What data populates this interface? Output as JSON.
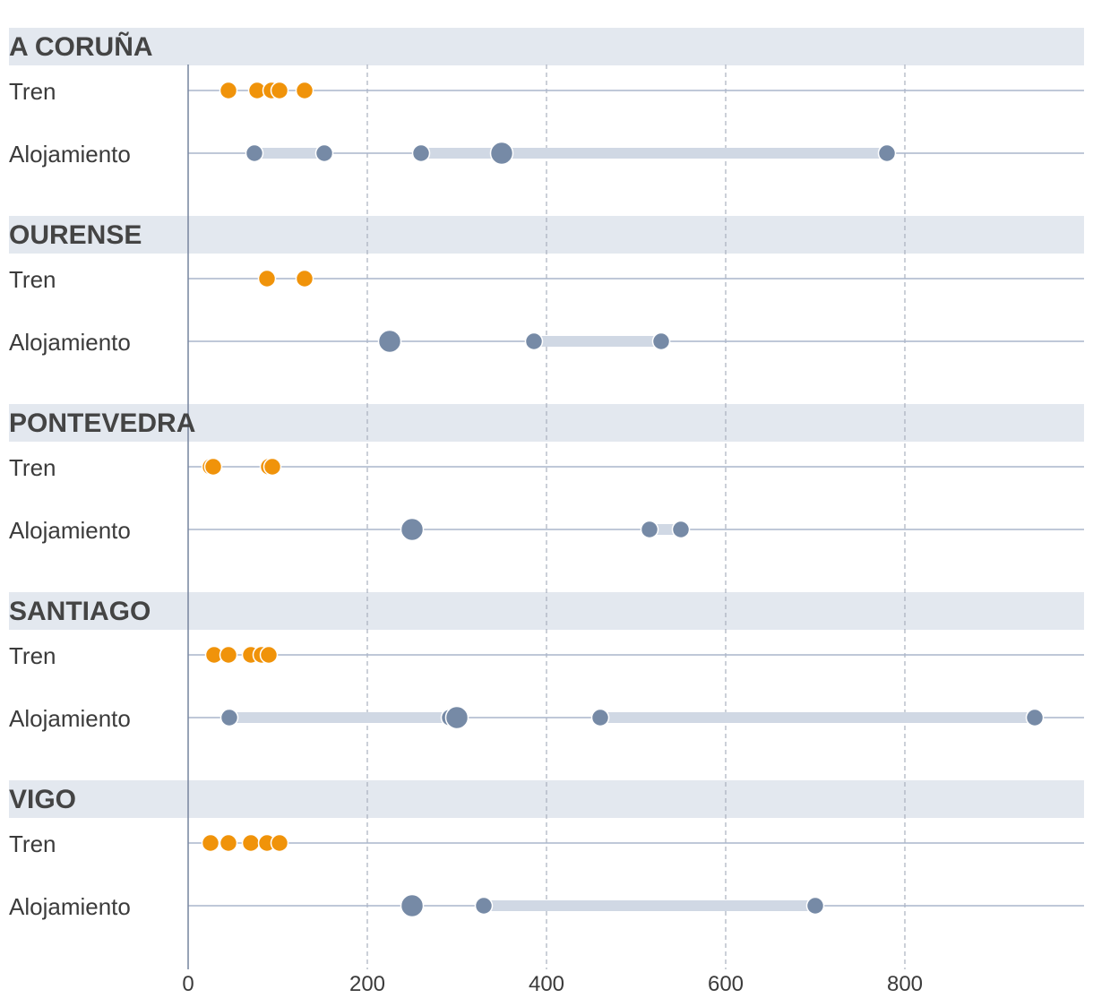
{
  "colors": {
    "band": "#e3e8ef",
    "row_line": "#aab6cc",
    "grid": "#a9b0bd",
    "axis": "#7d8aa3",
    "tren": "#f0930a",
    "alojamiento": "#768aa6",
    "range_bar": "#d0d8e4",
    "dot_stroke": "#ffffff"
  },
  "chart_data": {
    "type": "dot-range",
    "xlim": [
      0,
      1000
    ],
    "xticks": [
      "0",
      "200",
      "400",
      "600",
      "800"
    ],
    "grid": "vertical-dashed",
    "groups": [
      {
        "name": "A CORUÑA",
        "rows": [
          {
            "label": "Tren",
            "kind": "tren",
            "points": [
              45,
              77,
              93,
              102,
              130
            ]
          },
          {
            "label": "Alojamiento",
            "kind": "alojamiento",
            "ranges": [
              [
                74,
                152
              ],
              [
                260,
                780
              ]
            ],
            "points": [
              74,
              152,
              260,
              780
            ],
            "big_points": [
              350
            ]
          }
        ]
      },
      {
        "name": "OURENSE",
        "rows": [
          {
            "label": "Tren",
            "kind": "tren",
            "points": [
              88,
              130
            ]
          },
          {
            "label": "Alojamiento",
            "kind": "alojamiento",
            "ranges": [
              [
                386,
                528
              ]
            ],
            "points": [
              386,
              528
            ],
            "big_points": [
              225
            ]
          }
        ]
      },
      {
        "name": "PONTEVEDRA",
        "rows": [
          {
            "label": "Tren",
            "kind": "tren",
            "points": [
              25,
              28,
              90,
              94
            ]
          },
          {
            "label": "Alojamiento",
            "kind": "alojamiento",
            "ranges": [
              [
                515,
                550
              ]
            ],
            "points": [
              515,
              550
            ],
            "big_points": [
              250
            ]
          }
        ]
      },
      {
        "name": "SANTIAGO",
        "rows": [
          {
            "label": "Tren",
            "kind": "tren",
            "points": [
              29,
              45,
              70,
              82,
              90
            ]
          },
          {
            "label": "Alojamiento",
            "kind": "alojamiento",
            "ranges": [
              [
                46,
                292
              ],
              [
                460,
                945
              ]
            ],
            "points": [
              46,
              292,
              460,
              945
            ],
            "big_points": [
              300
            ]
          }
        ]
      },
      {
        "name": "VIGO",
        "rows": [
          {
            "label": "Tren",
            "kind": "tren",
            "points": [
              25,
              45,
              70,
              88,
              102
            ]
          },
          {
            "label": "Alojamiento",
            "kind": "alojamiento",
            "ranges": [
              [
                330,
                700
              ]
            ],
            "points": [
              330,
              700
            ],
            "big_points": [
              250
            ]
          }
        ]
      }
    ]
  }
}
